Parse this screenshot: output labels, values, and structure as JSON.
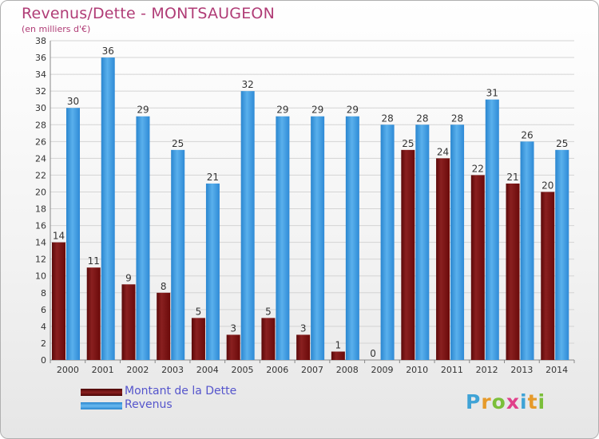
{
  "title": "Revenus/Dette - MONTSAUGEON",
  "subtitle": "(en milliers d'€)",
  "logo": {
    "letters": [
      "P",
      "r",
      "o",
      "x",
      "i",
      "t",
      "i"
    ],
    "colors": [
      "#3fa3d6",
      "#e69a2a",
      "#7bbf3a",
      "#e0408a",
      "#3fa3d6",
      "#e69a2a",
      "#7bbf3a"
    ]
  },
  "colors": {
    "dette": "#7a1010",
    "revenus": "#3a95dc",
    "title": "#b03c76",
    "legend_text": "#5555cc"
  },
  "chart_data": {
    "type": "bar",
    "title": "Revenus/Dette - MONTSAUGEON",
    "subtitle": "(en milliers d'€)",
    "categories": [
      "2000",
      "2001",
      "2002",
      "2003",
      "2004",
      "2005",
      "2006",
      "2007",
      "2008",
      "2009",
      "2010",
      "2011",
      "2012",
      "2013",
      "2014"
    ],
    "series": [
      {
        "name": "Montant de la Dette",
        "values": [
          14,
          11,
          9,
          8,
          5,
          3,
          5,
          3,
          1,
          0,
          25,
          24,
          22,
          21,
          20
        ]
      },
      {
        "name": "Revenus",
        "values": [
          30,
          36,
          29,
          25,
          21,
          32,
          29,
          29,
          29,
          28,
          28,
          28,
          31,
          26,
          25
        ]
      }
    ],
    "ylim": [
      0,
      38
    ],
    "yticks": [
      0,
      2,
      4,
      6,
      8,
      10,
      12,
      14,
      16,
      18,
      20,
      22,
      24,
      26,
      28,
      30,
      32,
      34,
      36,
      38
    ],
    "grid": true,
    "legend_position": "bottom-left"
  }
}
